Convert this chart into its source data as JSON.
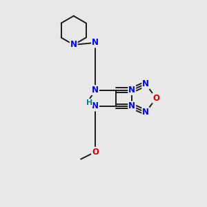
{
  "bg_color": "#e8e8e8",
  "bond_color": "#1a1a1a",
  "N_color": "#0000dd",
  "O_color": "#cc0000",
  "H_color": "#008888",
  "font_size_atom": 8.5,
  "bond_width": 1.4,
  "figsize": [
    3.0,
    3.0
  ],
  "dpi": 100,
  "xlim": [
    0,
    10
  ],
  "ylim": [
    0,
    10
  ]
}
